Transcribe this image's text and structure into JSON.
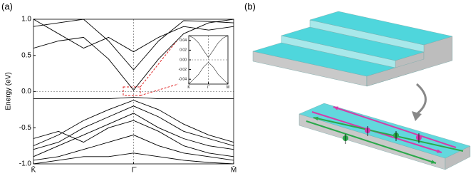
{
  "panel_labels": [
    "(a)",
    "(b)"
  ],
  "chart_data": [
    {
      "type": "line",
      "ylabel": "Energy (eV)",
      "x": [
        0,
        0.25,
        0.5,
        0.75,
        1,
        1.25,
        1.5,
        1.75,
        2
      ],
      "xlim": [
        0,
        2
      ],
      "xticks": [
        {
          "value": 0,
          "label": "K̄"
        },
        {
          "value": 1,
          "label": "Γ̄"
        },
        {
          "value": 2,
          "label": "M̄"
        }
      ],
      "ylim": [
        -1,
        1
      ],
      "yticks": [
        {
          "value": 1,
          "label": "1.0"
        },
        0.5,
        {
          "value": 0,
          "label": "0.0"
        },
        -0.5,
        {
          "value": -1,
          "label": "-1.0"
        }
      ],
      "zero_line": true,
      "x_grid": true,
      "series": [
        {
          "color": "#000000",
          "values": [
            0.6,
            0.7,
            0.75,
            0.45,
            0.02,
            0.45,
            0.8,
            0.95,
            1.0
          ]
        },
        {
          "color": "#000000",
          "values": [
            0.9,
            0.95,
            1.0,
            0.7,
            0.3,
            0.7,
            0.98,
            0.97,
            0.95
          ]
        },
        {
          "color": "#000000",
          "values": [
            1.0,
            0.8,
            0.6,
            0.75,
            0.55,
            0.75,
            0.9,
            0.85,
            0.9
          ]
        },
        {
          "color": "#000000",
          "values": [
            -0.1,
            -0.1,
            -0.1,
            -0.1,
            -0.08,
            -0.1,
            -0.1,
            -0.1,
            -0.1
          ]
        },
        {
          "color": "#000000",
          "values": [
            -0.75,
            -0.6,
            -0.4,
            -0.25,
            -0.12,
            -0.25,
            -0.45,
            -0.6,
            -0.7
          ]
        },
        {
          "color": "#000000",
          "values": [
            -0.8,
            -0.7,
            -0.5,
            -0.35,
            -0.2,
            -0.35,
            -0.55,
            -0.65,
            -0.75
          ]
        },
        {
          "color": "#000000",
          "values": [
            -0.9,
            -0.75,
            -0.6,
            -0.45,
            -0.3,
            -0.5,
            -0.65,
            -0.75,
            -0.8
          ]
        },
        {
          "color": "#000000",
          "values": [
            -0.65,
            -0.55,
            -0.7,
            -0.5,
            -0.4,
            -0.55,
            -0.75,
            -0.85,
            -0.9
          ]
        },
        {
          "color": "#000000",
          "values": [
            -0.95,
            -0.9,
            -0.8,
            -0.7,
            -0.6,
            -0.75,
            -0.85,
            -0.9,
            -0.95
          ]
        },
        {
          "color": "#000000",
          "values": [
            -1.0,
            -0.95,
            -0.9,
            -0.9,
            -0.85,
            -0.9,
            -0.95,
            -0.98,
            -1.0
          ]
        }
      ]
    },
    {
      "type": "line",
      "x": [
        0,
        0.25,
        0.5,
        0.75,
        1,
        1.25,
        1.5,
        1.75,
        2
      ],
      "xlim": [
        0,
        2
      ],
      "xticks": [
        {
          "value": 0,
          "label": "K̄"
        },
        {
          "value": 1,
          "label": "Γ̄"
        },
        {
          "value": 2,
          "label": "M̄"
        }
      ],
      "ylim": [
        -0.05,
        0.05
      ],
      "yticks": [
        0.04,
        0.02,
        {
          "value": 0,
          "label": "0.00"
        },
        -0.02,
        -0.04
      ],
      "zero_line": true,
      "x_grid": true,
      "series": [
        {
          "color": "#333333",
          "values": [
            0.05,
            0.045,
            0.035,
            0.02,
            0.005,
            0.02,
            0.035,
            0.045,
            0.05
          ]
        },
        {
          "color": "#333333",
          "values": [
            -0.05,
            -0.04,
            -0.03,
            -0.015,
            -0.005,
            -0.015,
            -0.03,
            -0.04,
            -0.05
          ]
        }
      ]
    }
  ]
}
